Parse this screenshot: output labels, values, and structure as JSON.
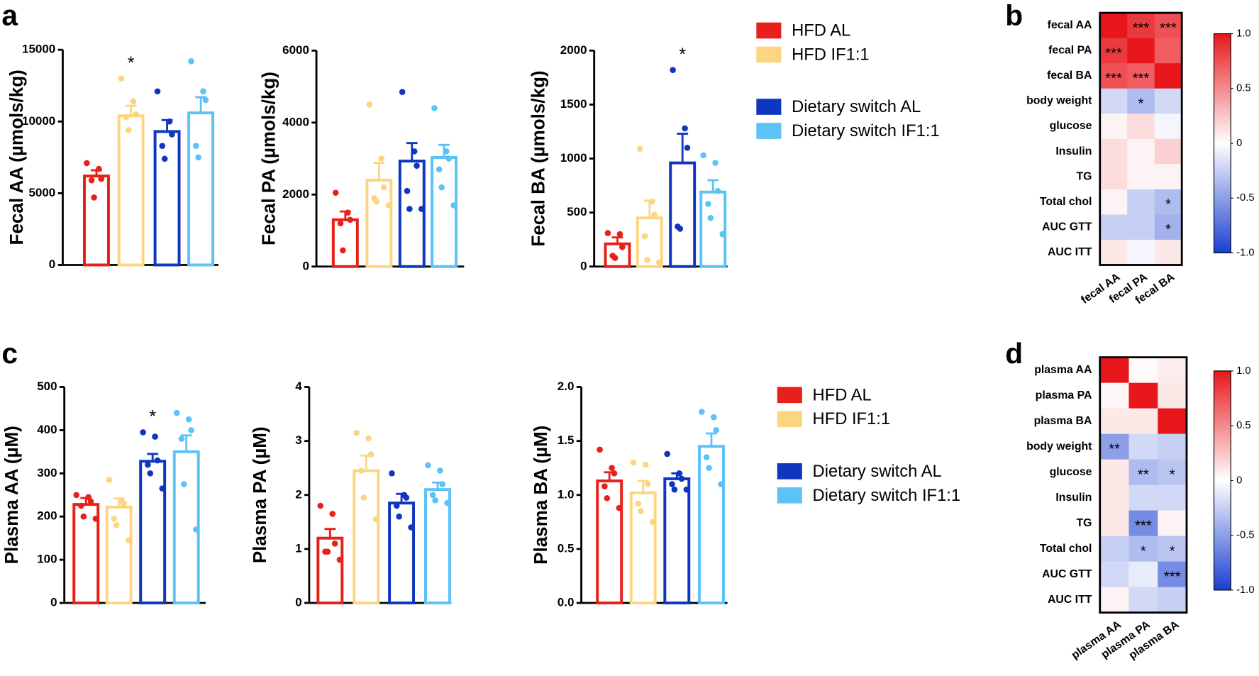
{
  "panel_labels": [
    "a",
    "b",
    "c",
    "d"
  ],
  "legends": [
    [
      {
        "name": "HFD AL",
        "color": "#e8201a"
      },
      {
        "name": "HFD IF1:1",
        "color": "#fcd580"
      },
      {
        "name": "Dietary switch AL",
        "color": "#0f36bf"
      },
      {
        "name": "Dietary switch IF1:1",
        "color": "#5bc3f5"
      }
    ],
    [
      {
        "name": "HFD AL",
        "color": "#e8201a"
      },
      {
        "name": "HFD IF1:1",
        "color": "#fcd580"
      },
      {
        "name": "Dietary switch AL",
        "color": "#0f36bf"
      },
      {
        "name": "Dietary switch IF1:1",
        "color": "#5bc3f5"
      }
    ]
  ],
  "chart_data": [
    {
      "type": "bar",
      "ylabel": "Fecal AA (µmols/kg)",
      "ylim": [
        0,
        15000
      ],
      "yticks": [
        0,
        5000,
        10000,
        15000
      ],
      "colors": [
        "#e8201a",
        "#fcd580",
        "#0f36bf",
        "#5bc3f5"
      ],
      "values": [
        6200,
        10400,
        9300,
        10600
      ],
      "errors": [
        400,
        700,
        800,
        1100
      ],
      "points": [
        [
          7100,
          6700,
          6000,
          5900,
          4700
        ],
        [
          13000,
          11400,
          10500,
          10300,
          9400
        ],
        [
          12100,
          10000,
          9100,
          8300,
          7400
        ],
        [
          14200,
          12100,
          11500,
          8300,
          7500
        ]
      ],
      "stars": [
        null,
        "*",
        null,
        null
      ]
    },
    {
      "type": "bar",
      "ylabel": "Fecal PA (µmols/kg)",
      "ylim": [
        0,
        6000
      ],
      "yticks": [
        0,
        2000,
        4000,
        6000
      ],
      "colors": [
        "#e8201a",
        "#fcd580",
        "#0f36bf",
        "#5bc3f5"
      ],
      "values": [
        1300,
        2400,
        2930,
        3030
      ],
      "errors": [
        230,
        480,
        500,
        350
      ],
      "points": [
        [
          2050,
          1500,
          1300,
          1200,
          450
        ],
        [
          4500,
          3000,
          2200,
          1900,
          1800,
          1700
        ],
        [
          4850,
          3200,
          2800,
          2100,
          1600,
          1600
        ],
        [
          4400,
          3200,
          3000,
          2700,
          2200,
          1700
        ]
      ],
      "stars": [
        null,
        null,
        null,
        null
      ]
    },
    {
      "type": "bar",
      "ylabel": "Fecal BA (µmols/kg)",
      "ylim": [
        0,
        2000
      ],
      "yticks": [
        0,
        500,
        1000,
        1500,
        2000
      ],
      "colors": [
        "#e8201a",
        "#fcd580",
        "#0f36bf",
        "#5bc3f5"
      ],
      "values": [
        210,
        450,
        960,
        690
      ],
      "errors": [
        60,
        160,
        270,
        110
      ],
      "points": [
        [
          310,
          300,
          180,
          100,
          80
        ],
        [
          1090,
          600,
          480,
          280,
          60,
          40
        ],
        [
          1820,
          1280,
          1100,
          370,
          350
        ],
        [
          1030,
          960,
          700,
          580,
          450,
          300
        ]
      ],
      "stars": [
        null,
        null,
        "*",
        null
      ]
    },
    {
      "type": "heatmap",
      "rows": [
        "fecal AA",
        "fecal PA",
        "fecal BA",
        "body weight",
        "glucose",
        "Insulin",
        "TG",
        "Total chol",
        "AUC GTT",
        "AUC ITT"
      ],
      "columns": [
        "fecal AA",
        "fecal PA",
        "fecal BA"
      ],
      "values": [
        [
          1,
          0.85,
          0.75
        ],
        [
          0.85,
          1,
          0.7
        ],
        [
          0.75,
          0.7,
          1
        ],
        [
          -0.2,
          -0.35,
          -0.2
        ],
        [
          0.05,
          0.15,
          -0.05
        ],
        [
          0.15,
          0.05,
          0.2
        ],
        [
          0.15,
          0.05,
          0.05
        ],
        [
          0.05,
          -0.25,
          -0.35
        ],
        [
          -0.25,
          -0.25,
          -0.4
        ],
        [
          0.1,
          -0.05,
          0.1
        ]
      ],
      "stars": [
        [
          null,
          "***",
          "***"
        ],
        [
          "***",
          null,
          null
        ],
        [
          "***",
          "***",
          null
        ],
        [
          null,
          "*",
          null
        ],
        [
          null,
          null,
          null
        ],
        [
          null,
          null,
          null
        ],
        [
          null,
          null,
          null
        ],
        [
          null,
          null,
          "*"
        ],
        [
          null,
          null,
          "*"
        ],
        [
          null,
          null,
          null
        ]
      ],
      "zlim": [
        -1,
        1
      ],
      "zticks": [
        {
          "value": 1,
          "label": "1.0"
        },
        0.5,
        0,
        -0.5,
        {
          "value": -1,
          "label": "-1.0"
        }
      ],
      "colors": [
        "#1a3fd1",
        "#ffffff",
        "#e8171c"
      ]
    },
    {
      "type": "bar",
      "ylabel": "Plasma AA (µM)",
      "ylim": [
        0,
        500
      ],
      "yticks": [
        0,
        100,
        200,
        300,
        400,
        500
      ],
      "colors": [
        "#e8201a",
        "#fcd580",
        "#0f36bf",
        "#5bc3f5"
      ],
      "values": [
        228,
        222,
        328,
        350
      ],
      "errors": [
        15,
        20,
        17,
        38
      ],
      "points": [
        [
          250,
          245,
          235,
          225,
          200,
          195
        ],
        [
          285,
          235,
          230,
          195,
          180,
          145
        ],
        [
          395,
          385,
          330,
          320,
          300,
          265
        ],
        [
          440,
          425,
          400,
          380,
          275,
          170
        ]
      ],
      "stars": [
        null,
        null,
        "*",
        null
      ]
    },
    {
      "type": "bar",
      "ylabel": "Plasma PA (µM)",
      "ylim": [
        0,
        4
      ],
      "yticks": [
        0,
        1,
        2,
        3,
        4
      ],
      "colors": [
        "#e8201a",
        "#fcd580",
        "#0f36bf",
        "#5bc3f5"
      ],
      "values": [
        1.2,
        2.45,
        1.85,
        2.1
      ],
      "errors": [
        0.17,
        0.28,
        0.17,
        0.13
      ],
      "points": [
        [
          1.8,
          1.65,
          1.1,
          0.95,
          0.95,
          0.8
        ],
        [
          3.15,
          3.05,
          2.75,
          2.45,
          1.95,
          1.55
        ],
        [
          2.4,
          2.0,
          1.95,
          1.8,
          1.6,
          1.4
        ],
        [
          2.55,
          2.45,
          2.2,
          2.0,
          1.9,
          1.85
        ]
      ],
      "stars": [
        null,
        null,
        null,
        null
      ]
    },
    {
      "type": "bar",
      "ylabel": "Plasma BA (µM)",
      "ylim": [
        0,
        2
      ],
      "yticks": [
        {
          "value": 0,
          "label": "0.0"
        },
        0.5,
        {
          "value": 1,
          "label": "1.0"
        },
        1.5,
        {
          "value": 2,
          "label": "2.0"
        }
      ],
      "colors": [
        "#e8201a",
        "#fcd580",
        "#0f36bf",
        "#5bc3f5"
      ],
      "values": [
        1.13,
        1.02,
        1.15,
        1.45
      ],
      "errors": [
        0.08,
        0.11,
        0.05,
        0.12
      ],
      "points": [
        [
          1.42,
          1.25,
          1.2,
          1.08,
          0.97,
          0.88
        ],
        [
          1.3,
          1.28,
          1.1,
          0.92,
          0.85,
          0.75
        ],
        [
          1.38,
          1.2,
          1.15,
          1.1,
          1.05,
          1.05
        ],
        [
          1.77,
          1.72,
          1.6,
          1.35,
          1.25,
          1.1
        ]
      ],
      "stars": [
        null,
        null,
        null,
        null
      ]
    },
    {
      "type": "heatmap",
      "rows": [
        "plasma AA",
        "plasma PA",
        "plasma BA",
        "body weight",
        "glucose",
        "Insulin",
        "TG",
        "Total chol",
        "AUC GTT",
        "AUC ITT"
      ],
      "columns": [
        "plasma AA",
        "plasma PA",
        "plasma BA"
      ],
      "values": [
        [
          1,
          0.02,
          0.08
        ],
        [
          0.03,
          1,
          0.1
        ],
        [
          0.1,
          0.1,
          1
        ],
        [
          -0.5,
          -0.2,
          -0.25
        ],
        [
          0.1,
          -0.35,
          -0.3
        ],
        [
          0.1,
          -0.2,
          -0.2
        ],
        [
          0.1,
          -0.6,
          0.05
        ],
        [
          -0.25,
          -0.35,
          -0.3
        ],
        [
          -0.2,
          -0.1,
          -0.6
        ],
        [
          0.05,
          -0.2,
          -0.25
        ]
      ],
      "stars": [
        [
          null,
          null,
          null
        ],
        [
          null,
          null,
          null
        ],
        [
          null,
          null,
          null
        ],
        [
          "**",
          null,
          null
        ],
        [
          null,
          "**",
          "*"
        ],
        [
          null,
          null,
          null
        ],
        [
          null,
          "***",
          null
        ],
        [
          null,
          "*",
          "*"
        ],
        [
          null,
          null,
          "***"
        ],
        [
          null,
          null,
          null
        ]
      ],
      "zlim": [
        -1,
        1
      ],
      "zticks": [
        {
          "value": 1,
          "label": "1.0"
        },
        0.5,
        0,
        -0.5,
        {
          "value": -1,
          "label": "-1.0"
        }
      ],
      "colors": [
        "#1a3fd1",
        "#ffffff",
        "#e8171c"
      ]
    }
  ]
}
